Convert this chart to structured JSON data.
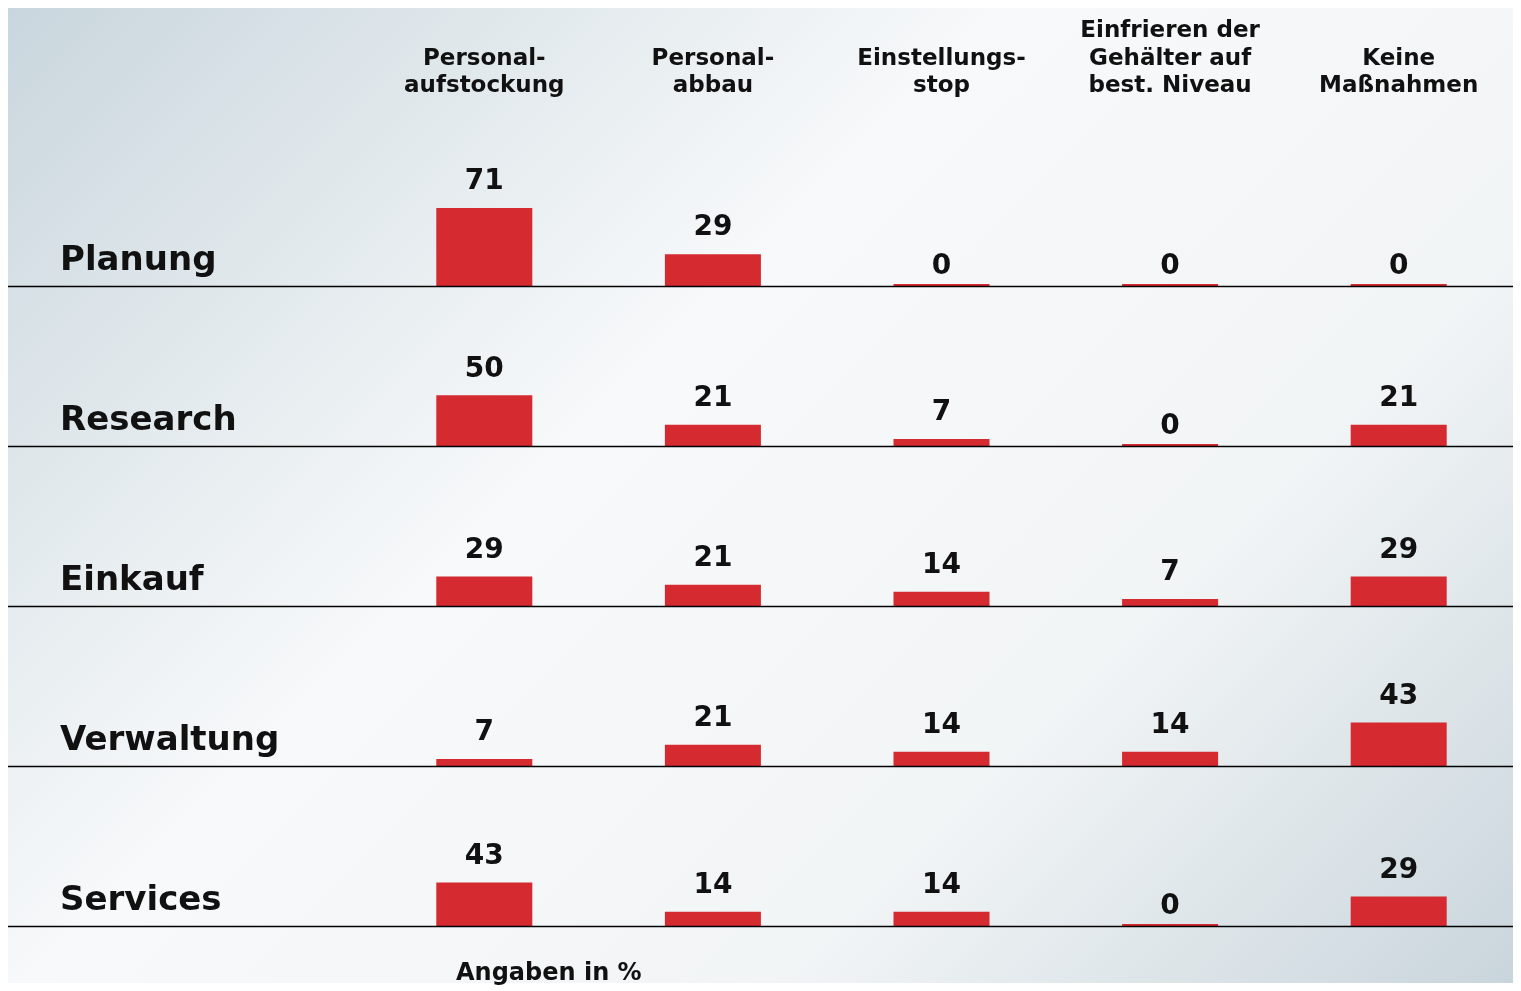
{
  "chart_data": [
    {
      "type": "bar",
      "title": "Planung",
      "categories": [
        "Personal-\naufstockung",
        "Personal-\nabbau",
        "Einstellungs-\nstop",
        "Einfrieren der\nGehälter auf\nbest. Niveau",
        "Keine\nMaßnahmen"
      ],
      "values": [
        71,
        29,
        0,
        0,
        0
      ],
      "color": "#d42a30",
      "data_labels": true,
      "tick_labels": "x",
      "grid": false,
      "legend": false
    },
    {
      "type": "bar",
      "title": "Research",
      "categories": [
        null,
        null,
        null,
        null,
        null
      ],
      "values": [
        50,
        21,
        7,
        0,
        21
      ],
      "color": "#d42a30",
      "data_labels": true,
      "tick_labels": false,
      "grid": false,
      "legend": false
    },
    {
      "type": "bar",
      "title": "Einkauf",
      "categories": [
        null,
        null,
        null,
        null,
        null
      ],
      "values": [
        29,
        21,
        14,
        7,
        29
      ],
      "color": "#d42a30",
      "data_labels": true,
      "tick_labels": false,
      "grid": false,
      "legend": false
    },
    {
      "type": "bar",
      "title": "Verwaltung",
      "categories": [
        null,
        null,
        null,
        null,
        null
      ],
      "values": [
        7,
        21,
        14,
        14,
        43
      ],
      "color": "#d42a30",
      "data_labels": true,
      "tick_labels": false,
      "grid": false,
      "legend": false
    },
    {
      "type": "bar",
      "title": "Services",
      "categories": [
        null,
        null,
        null,
        null,
        null
      ],
      "values": [
        43,
        14,
        14,
        0,
        29
      ],
      "color": "#d42a30",
      "data_labels": true,
      "tick_labels": false,
      "grid": false,
      "legend": false,
      "annotations": [
        "Angaben in %"
      ]
    }
  ]
}
